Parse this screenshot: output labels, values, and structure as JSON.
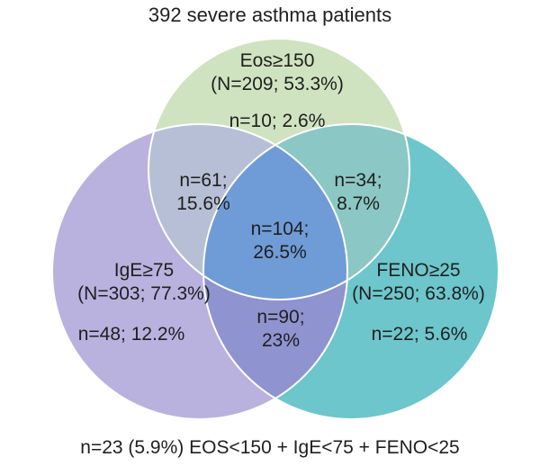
{
  "title": "392 severe asthma patients",
  "colors": {
    "eos": "#cfe3c0",
    "ige": "#b9b2df",
    "feno": "#6cc6cc",
    "ige_feno": "#8f93d0",
    "eos_ige": "#b7bfd6",
    "eos_feno": "#8bc7c4",
    "center": "#6f9cd7",
    "outline": "#ffffff"
  },
  "sets": {
    "eos": {
      "name": "Eos≥150",
      "stats": "(N=209; 53.3%)",
      "only": "n=10; 2.6%"
    },
    "ige": {
      "name": "IgE≥75",
      "stats": "(N=303; 77.3%)",
      "only": "n=48; 12.2%"
    },
    "feno": {
      "name": "FENO≥25",
      "stats": "(N=250; 63.8%)",
      "only": "n=22; 5.6%"
    }
  },
  "overlaps": {
    "eos_ige": {
      "line1": "n=61;",
      "line2": "15.6%"
    },
    "eos_feno": {
      "line1": "n=34;",
      "line2": "8.7%"
    },
    "all": {
      "line1": "n=104;",
      "line2": "26.5%"
    },
    "ige_feno": {
      "line1": "n=90;",
      "line2": "23%"
    }
  },
  "footer": "n=23 (5.9%) EOS<150 + IgE<75 + FENO<25"
}
